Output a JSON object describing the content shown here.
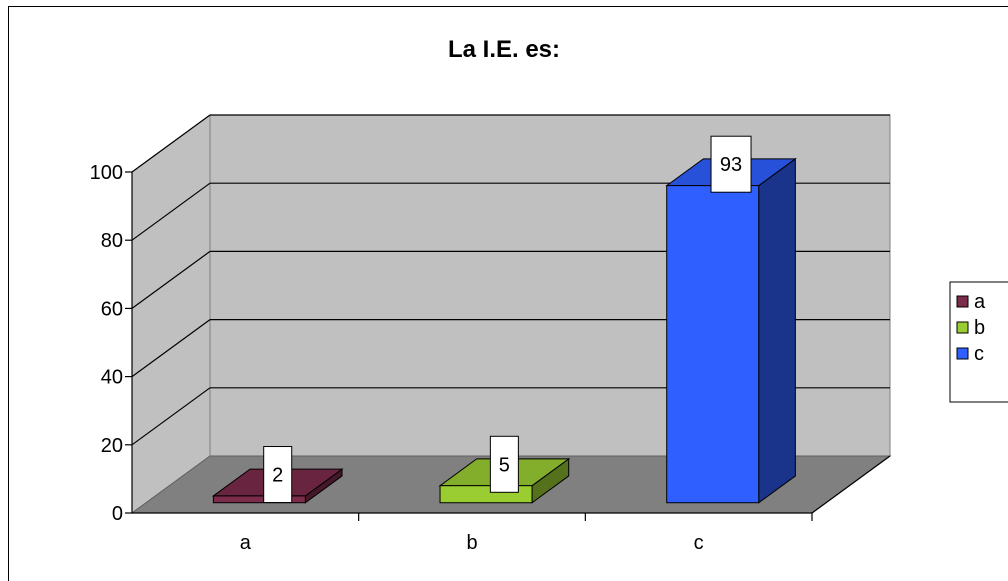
{
  "chart_data": {
    "type": "bar",
    "title": "La I.E. es:",
    "categories": [
      "a",
      "b",
      "c"
    ],
    "series": [
      {
        "name": "a",
        "values": [
          2,
          null,
          null
        ],
        "color": "#7b2c4a"
      },
      {
        "name": "b",
        "values": [
          null,
          5,
          null
        ],
        "color": "#9acd32"
      },
      {
        "name": "c",
        "values": [
          null,
          null,
          93
        ],
        "color": "#2f5fff"
      }
    ],
    "values": [
      2,
      5,
      93
    ],
    "data_labels": [
      "2",
      "5",
      "93"
    ],
    "y_ticks": [
      "0",
      "20",
      "40",
      "60",
      "80",
      "100"
    ],
    "ylim": [
      0,
      100
    ],
    "xlabel": "",
    "ylabel": "",
    "grid": true,
    "three_d": true,
    "legend": {
      "position": "right",
      "entries": [
        "a",
        "b",
        "c"
      ]
    },
    "colors": {
      "wall": "#c0c0c0",
      "floor": "#808080"
    }
  }
}
